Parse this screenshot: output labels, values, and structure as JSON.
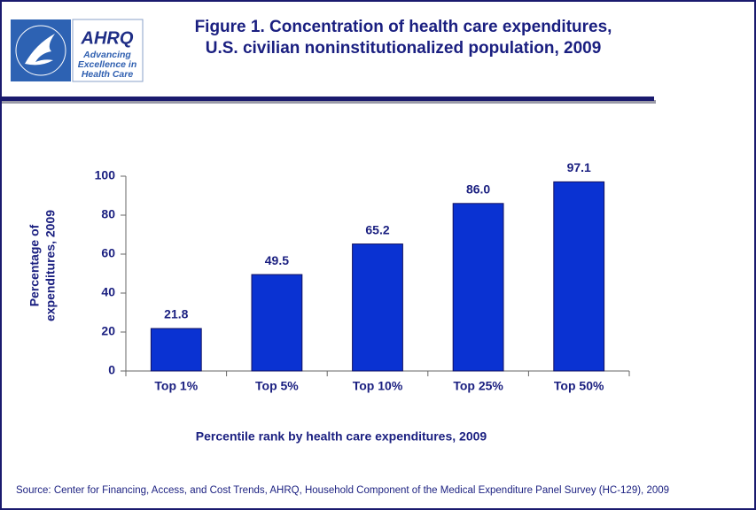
{
  "logo": {
    "name": "AHRQ",
    "tagline": [
      "Advancing",
      "Excellence in",
      "Health Care"
    ]
  },
  "chart_data": {
    "type": "bar",
    "title": [
      "Figure 1. Concentration of health care expenditures,",
      "U.S. civilian noninstitutionalized population, 2009"
    ],
    "y_label": [
      "Percentage of",
      "expenditures, 2009"
    ],
    "x_label": "Percentile rank by health care expenditures, 2009",
    "categories": [
      "Top 1%",
      "Top 5%",
      "Top 10%",
      "Top 25%",
      "Top 50%"
    ],
    "values": [
      21.8,
      49.5,
      65.2,
      86.0,
      97.1
    ],
    "value_labels": [
      "21.8",
      "49.5",
      "65.2",
      "86.0",
      "97.1"
    ],
    "color": "#0a32d2",
    "ylim": [
      0,
      100
    ],
    "yticks": [
      0,
      20,
      40,
      60,
      80,
      100
    ],
    "grid": false,
    "source": "Source: Center for Financing, Access, and Cost Trends, AHRQ, Household Component of the Medical Expenditure Panel Survey (HC-129), 2009"
  }
}
